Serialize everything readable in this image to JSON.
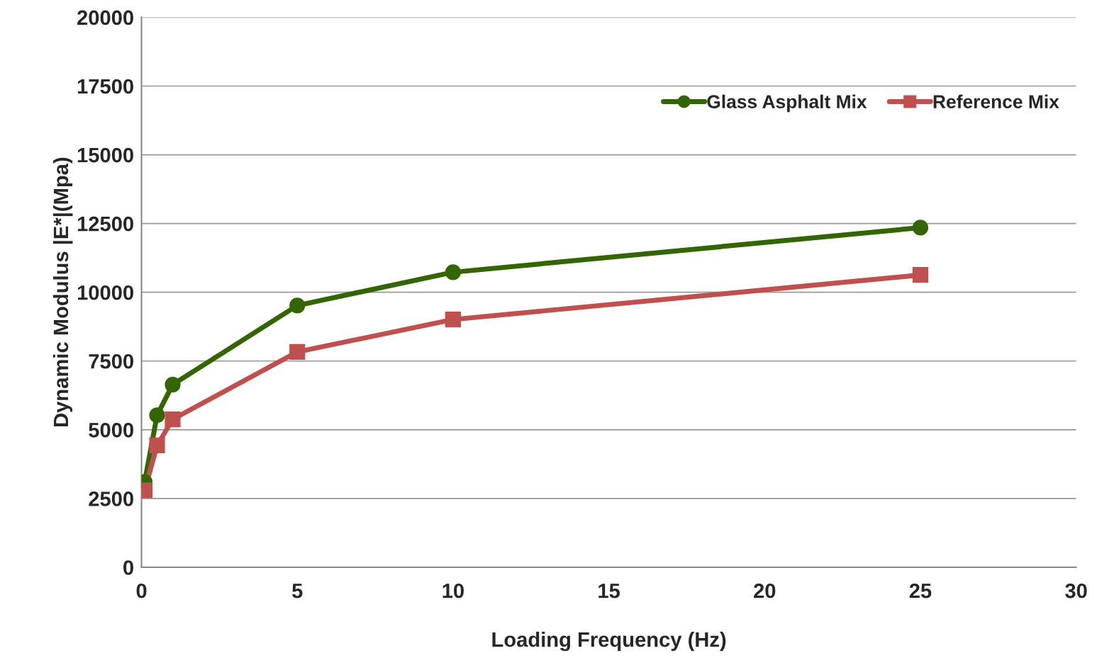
{
  "chart_data": {
    "type": "line",
    "xlabel": "Loading Frequency (Hz)",
    "ylabel": "Dynamic Modulus |E*|(Mpa)",
    "x": [
      0.1,
      0.5,
      1,
      5,
      10,
      25
    ],
    "series": [
      {
        "name": "Glass Asphalt Mix",
        "color": "#336600",
        "marker": "circle",
        "values": [
          3100,
          5530,
          6640,
          9520,
          10730,
          12350
        ]
      },
      {
        "name": "Reference Mix",
        "color": "#c0504d",
        "marker": "square",
        "values": [
          2800,
          4430,
          5380,
          7830,
          9010,
          10630
        ]
      }
    ],
    "xlim": [
      0,
      30
    ],
    "xticks": [
      0,
      5,
      10,
      15,
      20,
      25,
      30
    ],
    "ylim": [
      0,
      20000
    ],
    "yticks": [
      0,
      2500,
      5000,
      7500,
      10000,
      12500,
      15000,
      17500,
      20000
    ],
    "grid": "y",
    "legend": "top right",
    "line_style": "solid"
  }
}
